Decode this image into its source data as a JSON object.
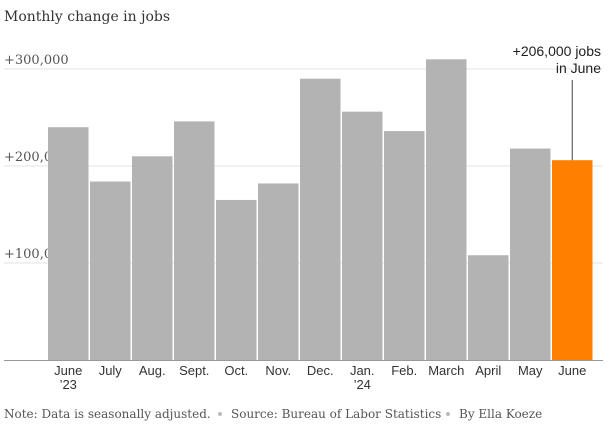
{
  "chart_data": {
    "type": "bar",
    "title": "Monthly change in jobs",
    "categories": [
      "June",
      "July",
      "Aug.",
      "Sept.",
      "Oct.",
      "Nov.",
      "Dec.",
      "Jan.",
      "Feb.",
      "March",
      "April",
      "May",
      "June"
    ],
    "category_sublabels": [
      "’23",
      "",
      "",
      "",
      "",
      "",
      "",
      "’24",
      "",
      "",
      "",
      "",
      ""
    ],
    "values": [
      240000,
      184000,
      210000,
      246000,
      165000,
      182000,
      290000,
      256000,
      236000,
      310000,
      108000,
      218000,
      206000
    ],
    "highlight_index": 12,
    "colors": {
      "bar": "#b3b3b3",
      "highlight": "#ff7f00",
      "grid": "#e3e3e3",
      "axis": "#999999",
      "annotation_line": "#444444"
    },
    "ylim": [
      0,
      320000
    ],
    "yticks": [
      100000,
      200000,
      300000
    ],
    "ytick_labels": [
      "+100,000",
      "+200,000",
      "+300,000"
    ],
    "grid": true,
    "xlabel": "",
    "ylabel": "",
    "annotation": {
      "lines": [
        "+206,000 jobs",
        "in June"
      ],
      "target_index": 12
    }
  },
  "footer": {
    "note": "Note: Data is seasonally adjusted.",
    "source": "Source: Bureau of Labor Statistics",
    "byline": "By Ella Koeze"
  }
}
